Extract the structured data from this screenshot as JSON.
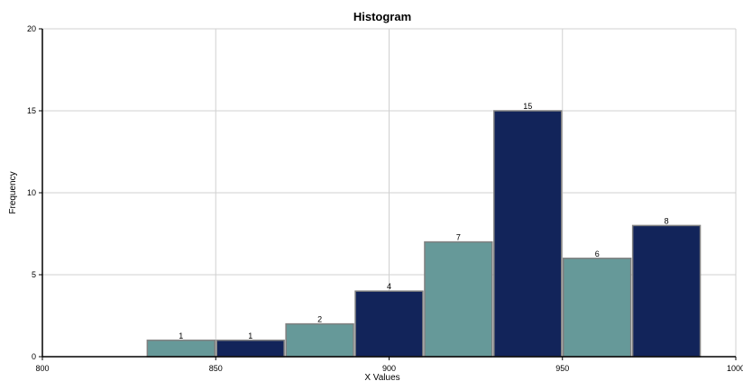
{
  "chart_data": {
    "type": "bar",
    "title": "Histogram",
    "xlabel": "X Values",
    "ylabel": "Frequency",
    "xlim": [
      800,
      1000
    ],
    "ylim": [
      0,
      20
    ],
    "x_ticks": [
      800,
      850,
      900,
      950,
      1000
    ],
    "y_ticks": [
      0,
      5,
      10,
      15,
      20
    ],
    "grid": true,
    "bin_width": 20,
    "bins": [
      {
        "start": 830,
        "end": 850,
        "count": 1
      },
      {
        "start": 850,
        "end": 870,
        "count": 1
      },
      {
        "start": 870,
        "end": 890,
        "count": 2
      },
      {
        "start": 890,
        "end": 910,
        "count": 4
      },
      {
        "start": 910,
        "end": 930,
        "count": 7
      },
      {
        "start": 930,
        "end": 950,
        "count": 15
      },
      {
        "start": 950,
        "end": 970,
        "count": 6
      },
      {
        "start": 970,
        "end": 990,
        "count": 8
      }
    ],
    "colors": [
      "#669999",
      "#12245a"
    ]
  }
}
